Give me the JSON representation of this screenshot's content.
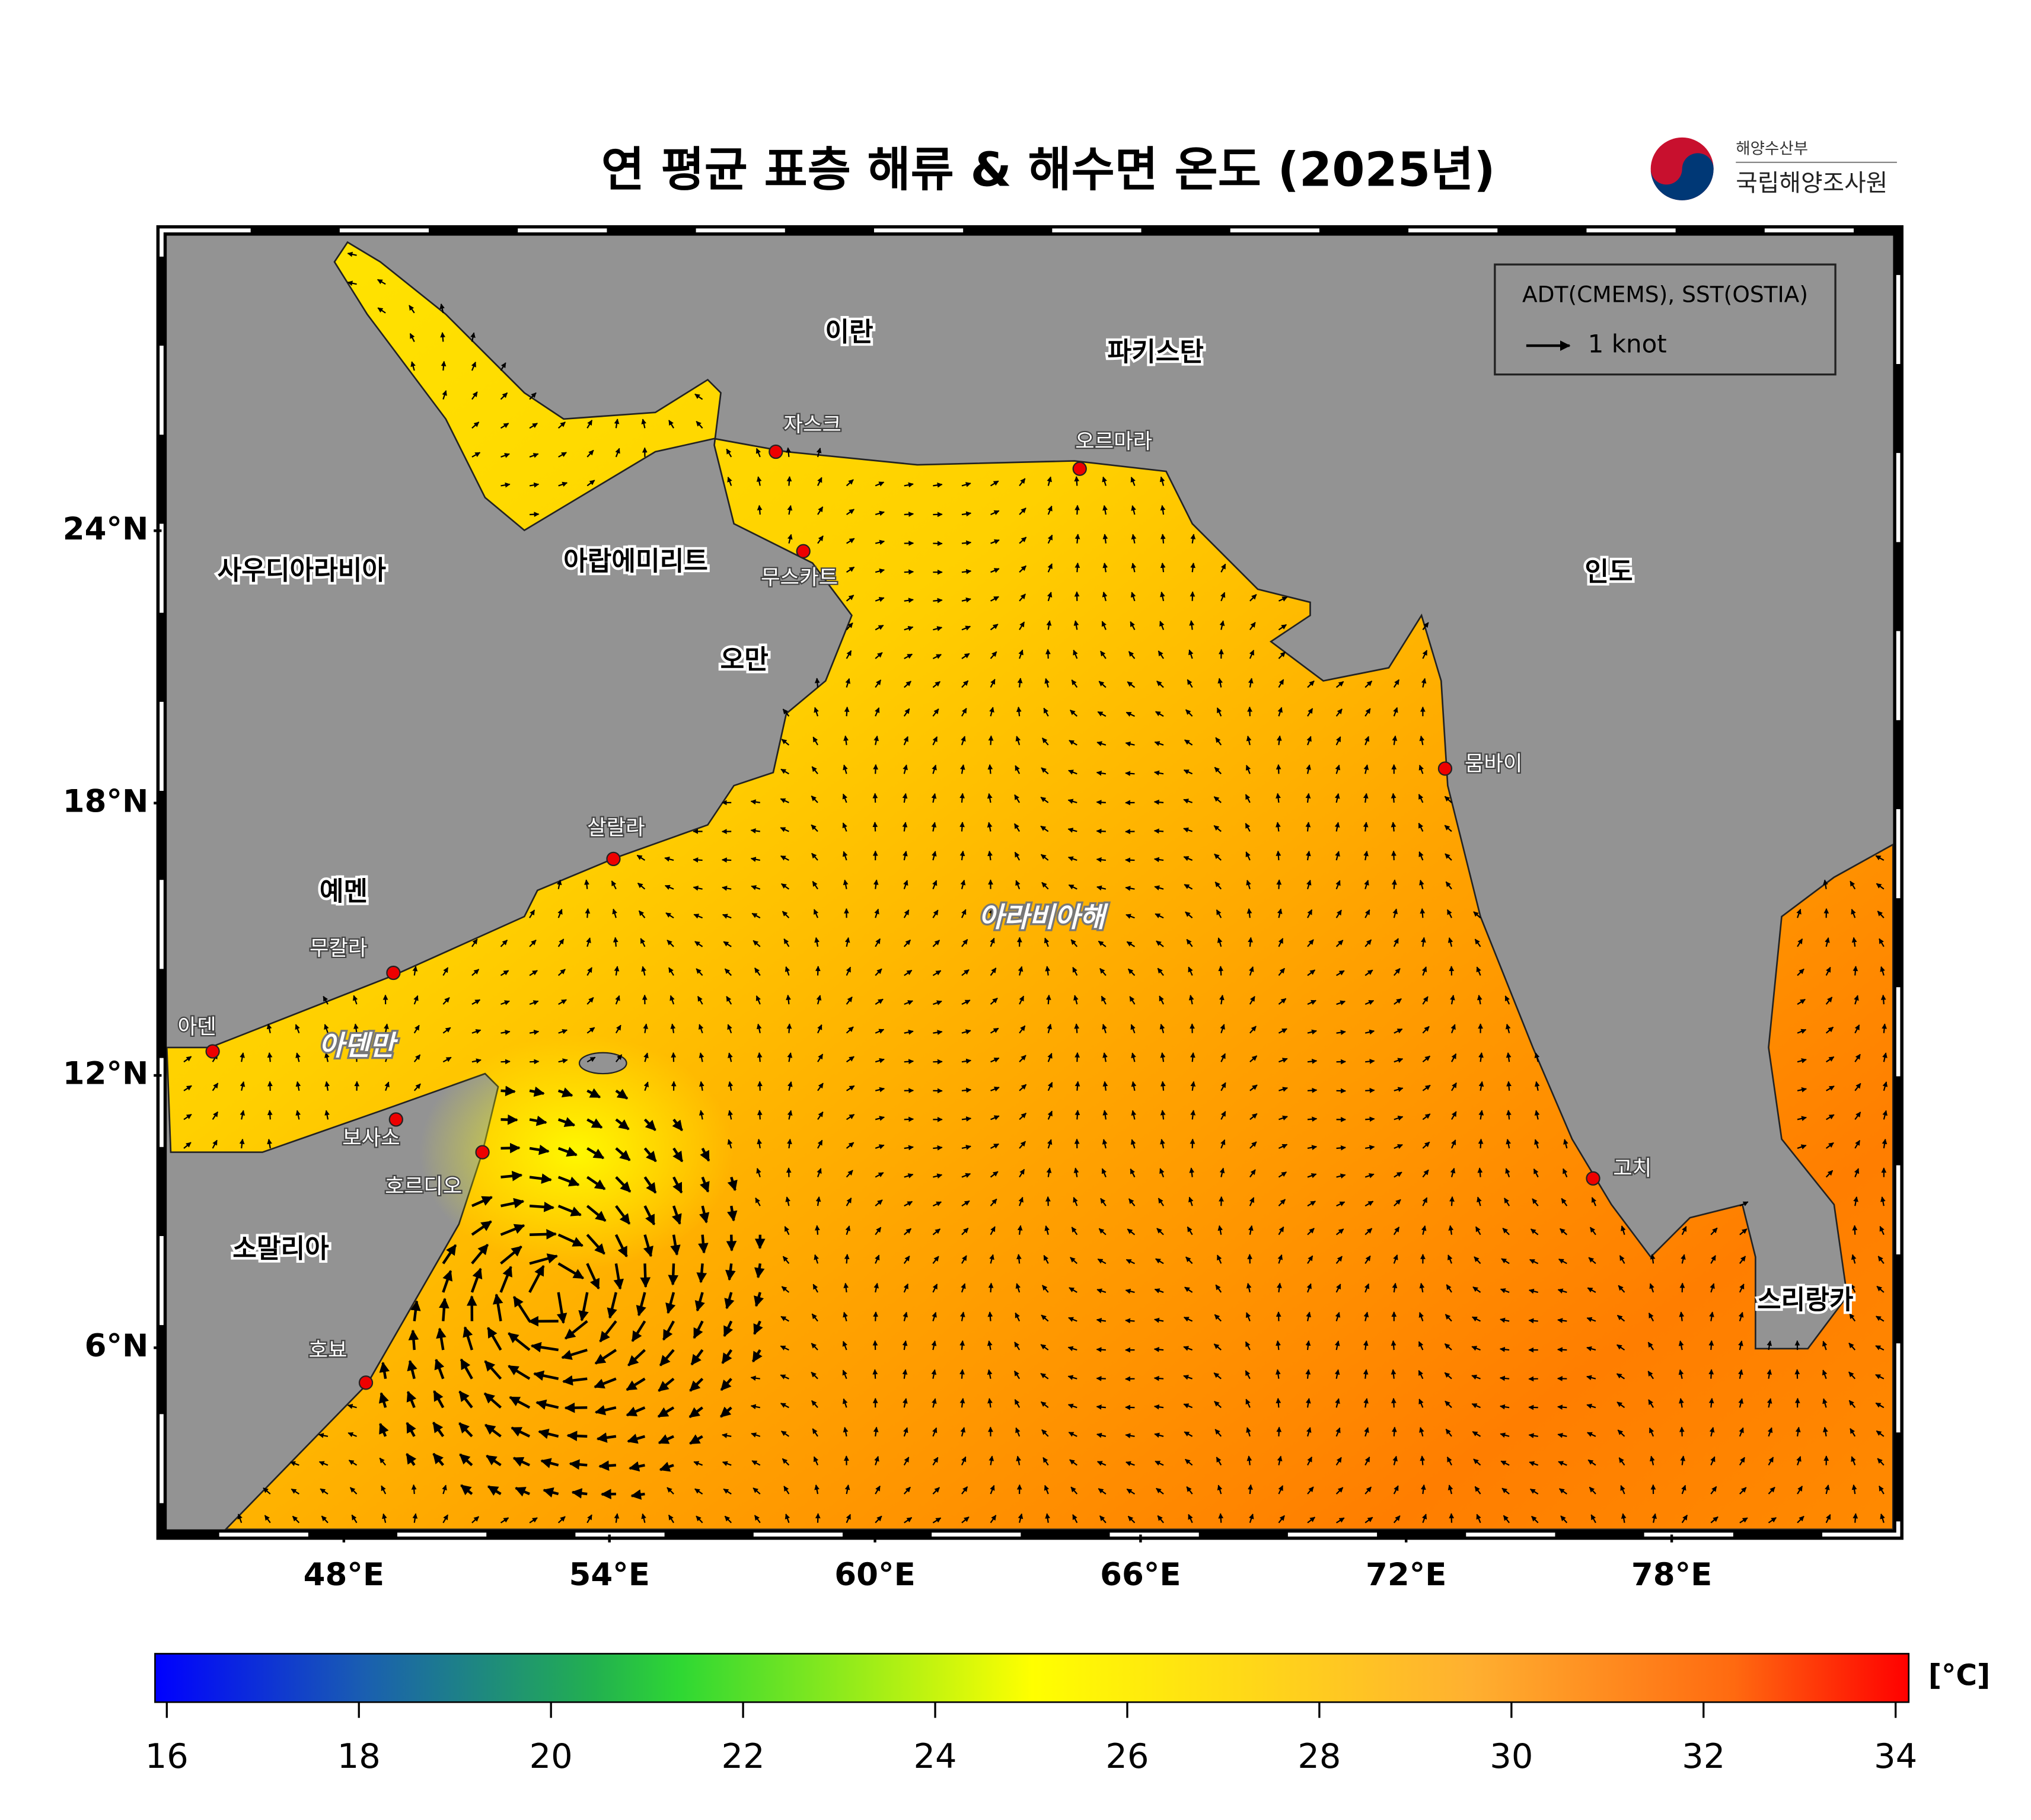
{
  "header": {
    "title": "연 평균 표층 해류 & 해수면 온도 (2025년)",
    "agency_top": "해양수산부",
    "agency": "국립해양조사원"
  },
  "map": {
    "lonlim": [
      44,
      83
    ],
    "latlim": [
      2,
      30.5
    ],
    "lon_ticks": [
      {
        "value": 48,
        "label": "48°E"
      },
      {
        "value": 54,
        "label": "54°E"
      },
      {
        "value": 60,
        "label": "60°E"
      },
      {
        "value": 66,
        "label": "66°E"
      },
      {
        "value": 72,
        "label": "72°E"
      },
      {
        "value": 78,
        "label": "78°E"
      }
    ],
    "lat_ticks": [
      {
        "value": 6,
        "label": "6°N"
      },
      {
        "value": 12,
        "label": "12°N"
      },
      {
        "value": 18,
        "label": "18°N"
      },
      {
        "value": 24,
        "label": "24°N"
      }
    ],
    "legend": {
      "source": "ADT(CMEMS), SST(OSTIA)",
      "scale": "1 knot"
    },
    "countries": [
      "이란",
      "파키스탄",
      "사우디아라비아",
      "아랍에미리트",
      "오만",
      "인도",
      "예멘",
      "소말리아",
      "스리랑카"
    ],
    "cities": [
      "자스크",
      "오르마라",
      "무스카트",
      "뭄바이",
      "살랄라",
      "무칼라",
      "아덴",
      "보사소",
      "호르디오",
      "호뵤",
      "고치"
    ],
    "seas": [
      "아라비아해",
      "아덴만"
    ]
  },
  "colorbar": {
    "lim": [
      16,
      34
    ],
    "ticks": [
      16,
      18,
      20,
      22,
      24,
      26,
      28,
      30,
      32,
      34
    ],
    "unit": "[°C]"
  }
}
